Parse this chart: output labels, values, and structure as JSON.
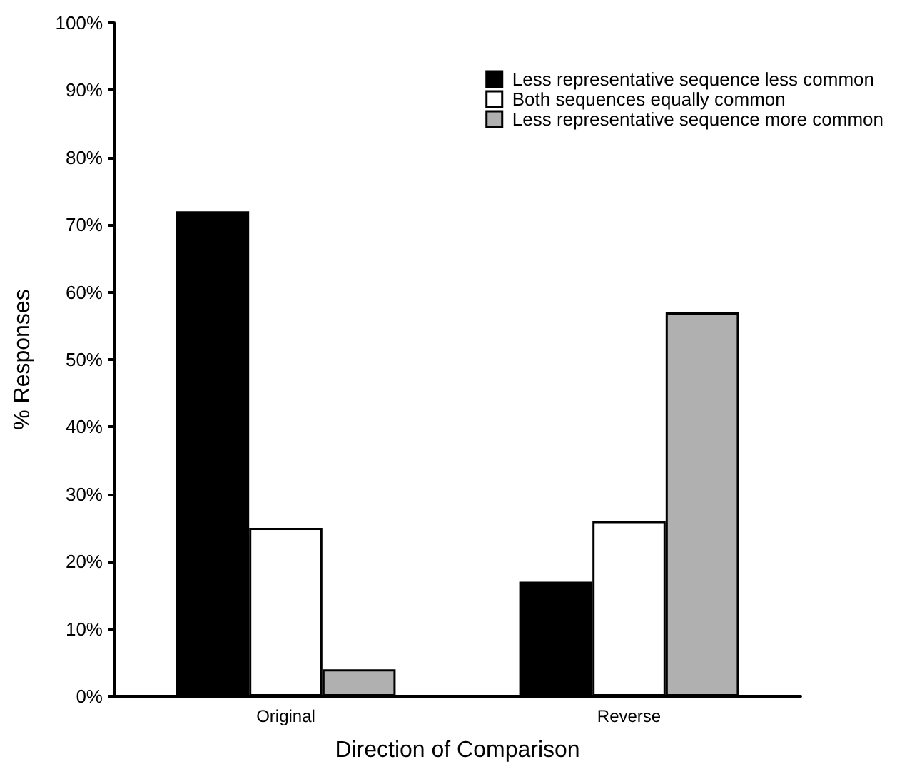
{
  "chart_data": {
    "type": "bar",
    "xlabel": "Direction of Comparison",
    "ylabel": "% Responses",
    "categories": [
      "Original",
      "Reverse"
    ],
    "series": [
      {
        "name": "Less representative sequence less common",
        "color": "#000000",
        "values": [
          72,
          17
        ]
      },
      {
        "name": "Both sequences equally common",
        "color": "#ffffff",
        "values": [
          25,
          26
        ]
      },
      {
        "name": "Less representative sequence more common",
        "color": "#b0b0b0",
        "values": [
          4,
          57
        ]
      }
    ],
    "ylim": [
      0,
      100
    ],
    "yticks": [
      {
        "value": 0,
        "label": "0%"
      },
      {
        "value": 10,
        "label": "10%"
      },
      {
        "value": 20,
        "label": "20%"
      },
      {
        "value": 30,
        "label": "30%"
      },
      {
        "value": 40,
        "label": "40%"
      },
      {
        "value": 50,
        "label": "50%"
      },
      {
        "value": 60,
        "label": "60%"
      },
      {
        "value": 70,
        "label": "70%"
      },
      {
        "value": 80,
        "label": "80%"
      },
      {
        "value": 90,
        "label": "90%"
      },
      {
        "value": 100,
        "label": "100%"
      }
    ],
    "grid": false,
    "legend": "top right"
  }
}
